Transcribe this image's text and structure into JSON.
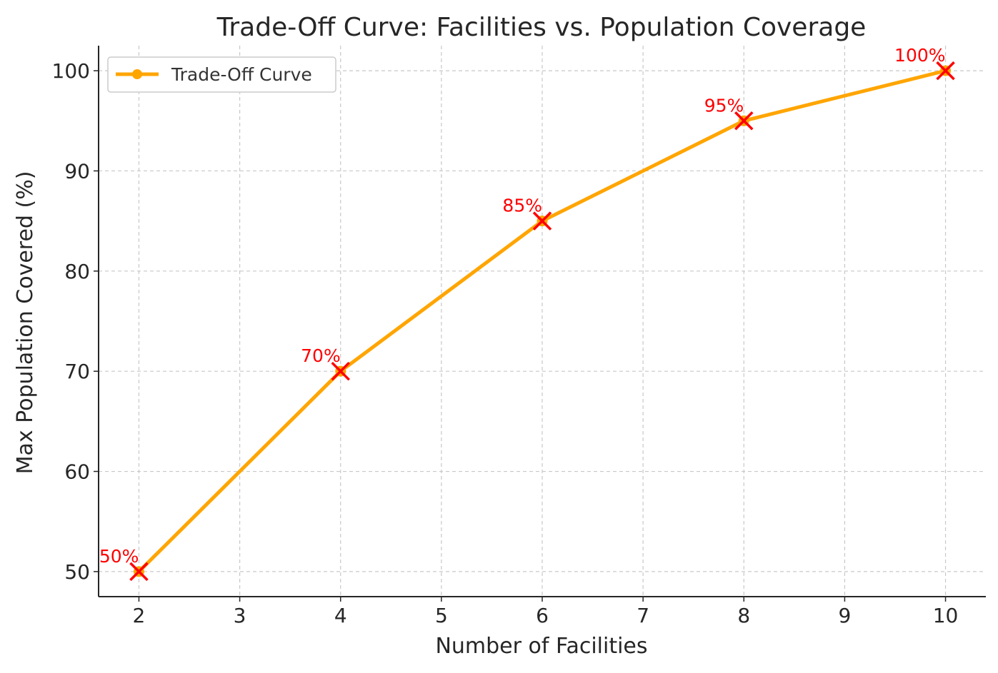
{
  "chart_data": {
    "type": "line",
    "title": "Trade-Off Curve: Facilities vs. Population Coverage",
    "xlabel": "Number of Facilities",
    "ylabel": "Max Population Covered (%)",
    "xlim": [
      1.6,
      10.4
    ],
    "ylim": [
      47.5,
      102.5
    ],
    "xticks": [
      2,
      3,
      4,
      5,
      6,
      7,
      8,
      9,
      10
    ],
    "xtick_labels": [
      "2",
      "3",
      "4",
      "5",
      "6",
      "7",
      "8",
      "9",
      "10"
    ],
    "yticks": [
      50,
      60,
      70,
      80,
      90,
      100
    ],
    "ytick_labels": [
      "50",
      "60",
      "70",
      "80",
      "90",
      "100"
    ],
    "grid": true,
    "legend_position": "top-left",
    "series": [
      {
        "name": "Trade-Off Curve",
        "color": "#FFA500",
        "marker": "circle",
        "x": [
          2,
          4,
          6,
          8,
          10
        ],
        "y": [
          50,
          70,
          85,
          95,
          100
        ]
      }
    ],
    "annotations": {
      "marker": "x",
      "color": "#FF0000",
      "points": [
        {
          "x": 2,
          "y": 50,
          "label": "50%"
        },
        {
          "x": 4,
          "y": 70,
          "label": "70%"
        },
        {
          "x": 6,
          "y": 85,
          "label": "85%"
        },
        {
          "x": 8,
          "y": 95,
          "label": "95%"
        },
        {
          "x": 10,
          "y": 100,
          "label": "100%"
        }
      ]
    }
  }
}
